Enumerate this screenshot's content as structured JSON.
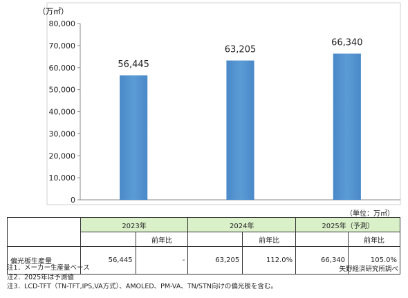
{
  "chart_data": {
    "type": "bar",
    "unit": "（万㎡）",
    "categories": [
      "2023年",
      "2024年",
      "2025年（予測）"
    ],
    "values": [
      56445,
      63205,
      66340
    ],
    "value_labels": [
      "56,445",
      "63,205",
      "66,340"
    ],
    "ylim": [
      0,
      80000
    ],
    "yticks": [
      "0",
      "10,000",
      "20,000",
      "30,000",
      "40,000",
      "50,000",
      "60,000",
      "70,000",
      "80,000"
    ],
    "bar_color": "#5b9bd5",
    "grid": false
  },
  "table": {
    "unit_note": "（単位：万㎡）",
    "years": [
      "2023年",
      "2024年",
      "2025年（予測）"
    ],
    "yoy_header": "前年比",
    "row_label": "偏光板生産量",
    "cells": [
      {
        "value": "56,445",
        "yoy": "-"
      },
      {
        "value": "63,205",
        "yoy": "112.0%"
      },
      {
        "value": "66,340",
        "yoy": "105.0%"
      }
    ]
  },
  "notes": [
    "注1．メーカー生産量ベース",
    "注2．2025年は予測値",
    "注3．LCD-TFT（TN-TFT,IPS,VA方式）、AMOLED、PM-VA、TN/STN向けの偏光板を含む。"
  ],
  "source": "矢野経済研究所調べ"
}
